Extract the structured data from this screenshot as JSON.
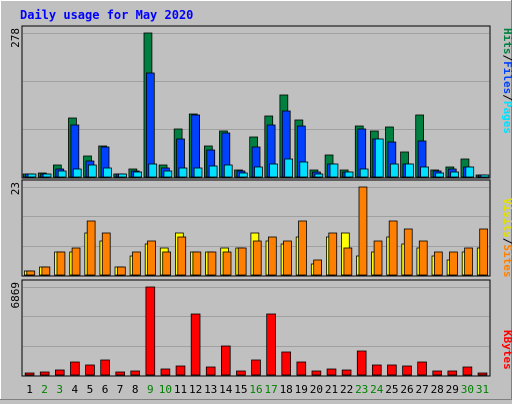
{
  "title": "Daily usage for May 2020",
  "colors": {
    "background": "#c0c0c0",
    "title": "#0000ff",
    "hits": "#008040",
    "files": "#0040ff",
    "pages": "#00e0ff",
    "visits": "#ffff00",
    "sites": "#ff8000",
    "kbytes": "#ff0000",
    "weekday_label": "#000000",
    "weekend_label": "#008000"
  },
  "axis_labels": {
    "top_max": "278",
    "mid_max": "23",
    "bottom_max": "6869"
  },
  "legend": {
    "pages": "Pages",
    "files": "Files",
    "hits": "Hits",
    "sites": "Sites",
    "visits": "Visits",
    "kbytes": "KBytes",
    "separator": "/"
  },
  "chart_data": {
    "type": "bar",
    "title": "Daily usage for May 2020",
    "categories": [
      "1",
      "2",
      "3",
      "4",
      "5",
      "6",
      "7",
      "8",
      "9",
      "10",
      "11",
      "12",
      "13",
      "14",
      "15",
      "16",
      "17",
      "18",
      "19",
      "20",
      "21",
      "22",
      "23",
      "24",
      "25",
      "26",
      "27",
      "28",
      "29",
      "30",
      "31"
    ],
    "weekend_days": [
      "2",
      "3",
      "9",
      "10",
      "16",
      "17",
      "23",
      "24",
      "30",
      "31"
    ],
    "panels": [
      {
        "name": "requests",
        "ymax": 278,
        "series": [
          {
            "name": "Hits",
            "values": [
              4,
              7,
              23,
              113,
              40,
              60,
              6,
              16,
              278,
              23,
              93,
              121,
              60,
              89,
              13,
              78,
              118,
              159,
              110,
              13,
              42,
              13,
              99,
              88,
              97,
              49,
              120,
              13,
              20,
              35,
              0
            ]
          },
          {
            "name": "Files",
            "values": [
              3,
              5,
              15,
              100,
              30,
              58,
              5,
              12,
              200,
              18,
              73,
              120,
              53,
              84,
              11,
              58,
              100,
              127,
              99,
              9,
              26,
              10,
              93,
              74,
              67,
              26,
              69,
              11,
              15,
              20,
              0
            ]
          },
          {
            "name": "Pages",
            "values": [
              2,
              4,
              12,
              15,
              24,
              18,
              4,
              10,
              25,
              12,
              17,
              18,
              21,
              24,
              8,
              20,
              25,
              35,
              28,
              5,
              26,
              10,
              15,
              74,
              26,
              25,
              20,
              8,
              10,
              20,
              0
            ]
          }
        ]
      },
      {
        "name": "visitors",
        "ymax": 23,
        "series": [
          {
            "name": "Visits",
            "values": [
              1,
              2,
              6,
              6,
              11,
              9,
              2,
              5,
              8,
              7,
              11,
              6,
              6,
              7,
              7,
              11,
              9,
              8,
              10,
              3,
              10,
              11,
              5,
              6,
              10,
              8,
              7,
              5,
              4,
              6,
              7
            ]
          },
          {
            "name": "Sites",
            "values": [
              1,
              2,
              6,
              7,
              14,
              11,
              2,
              6,
              9,
              6,
              10,
              6,
              6,
              6,
              7,
              9,
              10,
              9,
              14,
              4,
              11,
              7,
              23,
              9,
              14,
              12,
              9,
              6,
              6,
              7,
              12
            ]
          }
        ]
      },
      {
        "name": "traffic",
        "ymax": 6869,
        "series": [
          {
            "name": "KBytes",
            "values": [
              0,
              200,
              400,
              1000,
              800,
              1200,
              200,
              300,
              6869,
              500,
              700,
              4800,
              600,
              2300,
              300,
              1200,
              4800,
              1800,
              1000,
              300,
              500,
              400,
              1900,
              800,
              800,
              700,
              1000,
              300,
              300,
              600,
              0
            ]
          }
        ]
      }
    ]
  }
}
